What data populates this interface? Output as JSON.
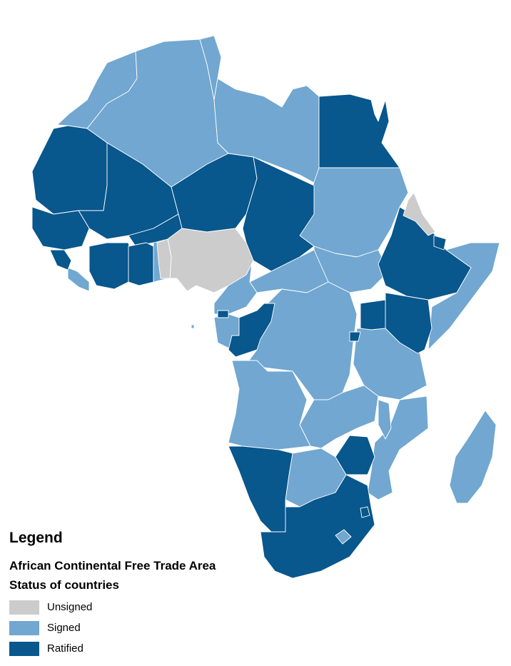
{
  "legend": {
    "heading": "Legend",
    "title": "African Continental Free Trade Area",
    "subtitle": "Status of countries",
    "items": [
      {
        "key": "unsigned",
        "label": "Unsigned",
        "color": "#cccccc"
      },
      {
        "key": "signed",
        "label": "Signed",
        "color": "#71a7d0"
      },
      {
        "key": "ratified",
        "label": "Ratified",
        "color": "#08578d"
      }
    ]
  },
  "colors": {
    "background": "#ffffff",
    "border": "#ffffff",
    "unsigned": "#cccccc",
    "signed": "#71a7d0",
    "ratified": "#08578d"
  }
}
